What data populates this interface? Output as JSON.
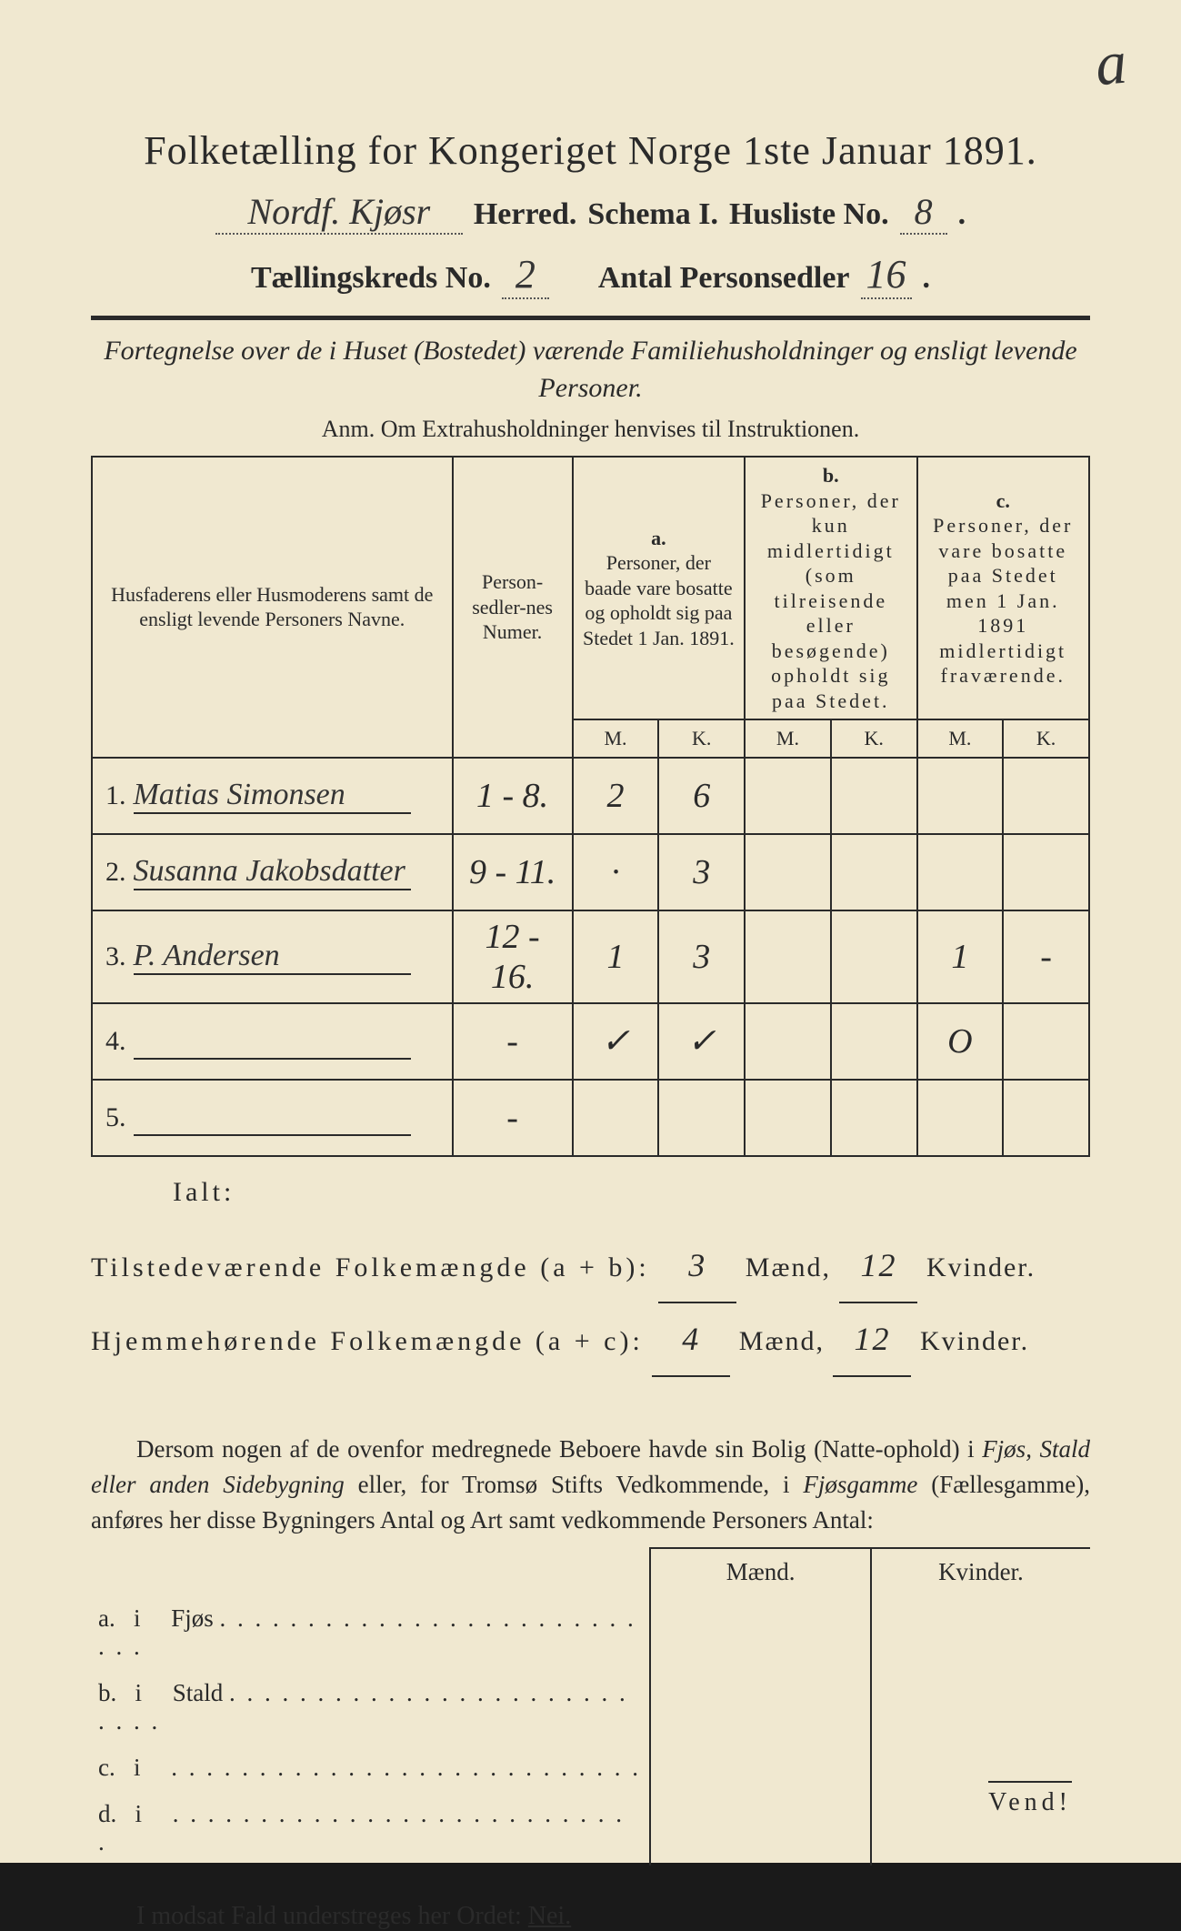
{
  "corner_mark": "a",
  "title": "Folketælling for Kongeriget Norge 1ste Januar 1891.",
  "header": {
    "herred_value": "Nordf. Kjøsr",
    "herred_label": "Herred.",
    "schema_label": "Schema I.",
    "husliste_label": "Husliste No.",
    "husliste_value": "8",
    "kreds_label": "Tællingskreds No.",
    "kreds_value": "2",
    "antal_label": "Antal Personsedler",
    "antal_value": "16"
  },
  "subtitle": "Fortegnelse over de i Huset (Bostedet) værende Familiehusholdninger og ensligt levende Personer.",
  "anm": "Anm. Om Extrahusholdninger henvises til Instruktionen.",
  "table": {
    "headers": {
      "name": "Husfaderens eller Husmoderens samt de ensligt levende Personers Navne.",
      "num": "Person-sedler-nes Numer.",
      "a_label": "a.",
      "a_text": "Personer, der baade vare bosatte og opholdt sig paa Stedet 1 Jan. 1891.",
      "b_label": "b.",
      "b_text": "Personer, der kun midlertidigt (som tilreisende eller besøgende) opholdt sig paa Stedet.",
      "c_label": "c.",
      "c_text": "Personer, der vare bosatte paa Stedet men 1 Jan. 1891 midlertidigt fraværende.",
      "m": "M.",
      "k": "K."
    },
    "rows": [
      {
        "n": "1.",
        "name": "Matias Simonsen",
        "num": "1 - 8.",
        "am": "2",
        "ak": "6",
        "bm": "",
        "bk": "",
        "cm": "",
        "ck": ""
      },
      {
        "n": "2.",
        "name": "Susanna Jakobsdatter",
        "num": "9 - 11.",
        "am": "·",
        "ak": "3",
        "bm": "",
        "bk": "",
        "cm": "",
        "ck": ""
      },
      {
        "n": "3.",
        "name": "P. Andersen",
        "num": "12 - 16.",
        "am": "1",
        "ak": "3",
        "bm": "",
        "bk": "",
        "cm": "1",
        "ck": "-"
      },
      {
        "n": "4.",
        "name": "",
        "num": "-",
        "am": "✓",
        "ak": "✓",
        "bm": "",
        "bk": "",
        "cm": "O",
        "ck": ""
      },
      {
        "n": "5.",
        "name": "",
        "num": "-",
        "am": "",
        "ak": "",
        "bm": "",
        "bk": "",
        "cm": "",
        "ck": ""
      }
    ]
  },
  "ialt": "Ialt:",
  "totals": {
    "line1_label": "Tilstedeværende Folkemængde (a + b):",
    "line1_m": "3",
    "line1_k": "12",
    "line2_label": "Hjemmehørende Folkemængde (a + c):",
    "line2_m": "4",
    "line2_k": "12",
    "maend": "Mænd,",
    "kvinder": "Kvinder."
  },
  "para": {
    "text1": "Dersom nogen af de ovenfor medregnede Beboere havde sin Bolig (Natte-ophold) i ",
    "it1": "Fjøs, Stald eller anden Sidebygning",
    "text2": " eller, for Tromsø Stifts Vedkommende, i ",
    "it2": "Fjøsgamme",
    "text3": " (Fællesgamme), anføres her disse Bygningers Antal og Art samt vedkommende Personers Antal:"
  },
  "side": {
    "maend": "Mænd.",
    "kvinder": "Kvinder.",
    "rows": [
      {
        "k": "a.",
        "i": "i",
        "label": "Fjøs"
      },
      {
        "k": "b.",
        "i": "i",
        "label": "Stald"
      },
      {
        "k": "c.",
        "i": "i",
        "label": ""
      },
      {
        "k": "d.",
        "i": "i",
        "label": ""
      }
    ]
  },
  "nei_line": "I modsat Fald understreges her Ordet: ",
  "nei": "Nei.",
  "vend": "Vend!",
  "colors": {
    "paper": "#f0e8d0",
    "ink": "#2a2a2a",
    "blue_ink": "#2a5a7a"
  }
}
